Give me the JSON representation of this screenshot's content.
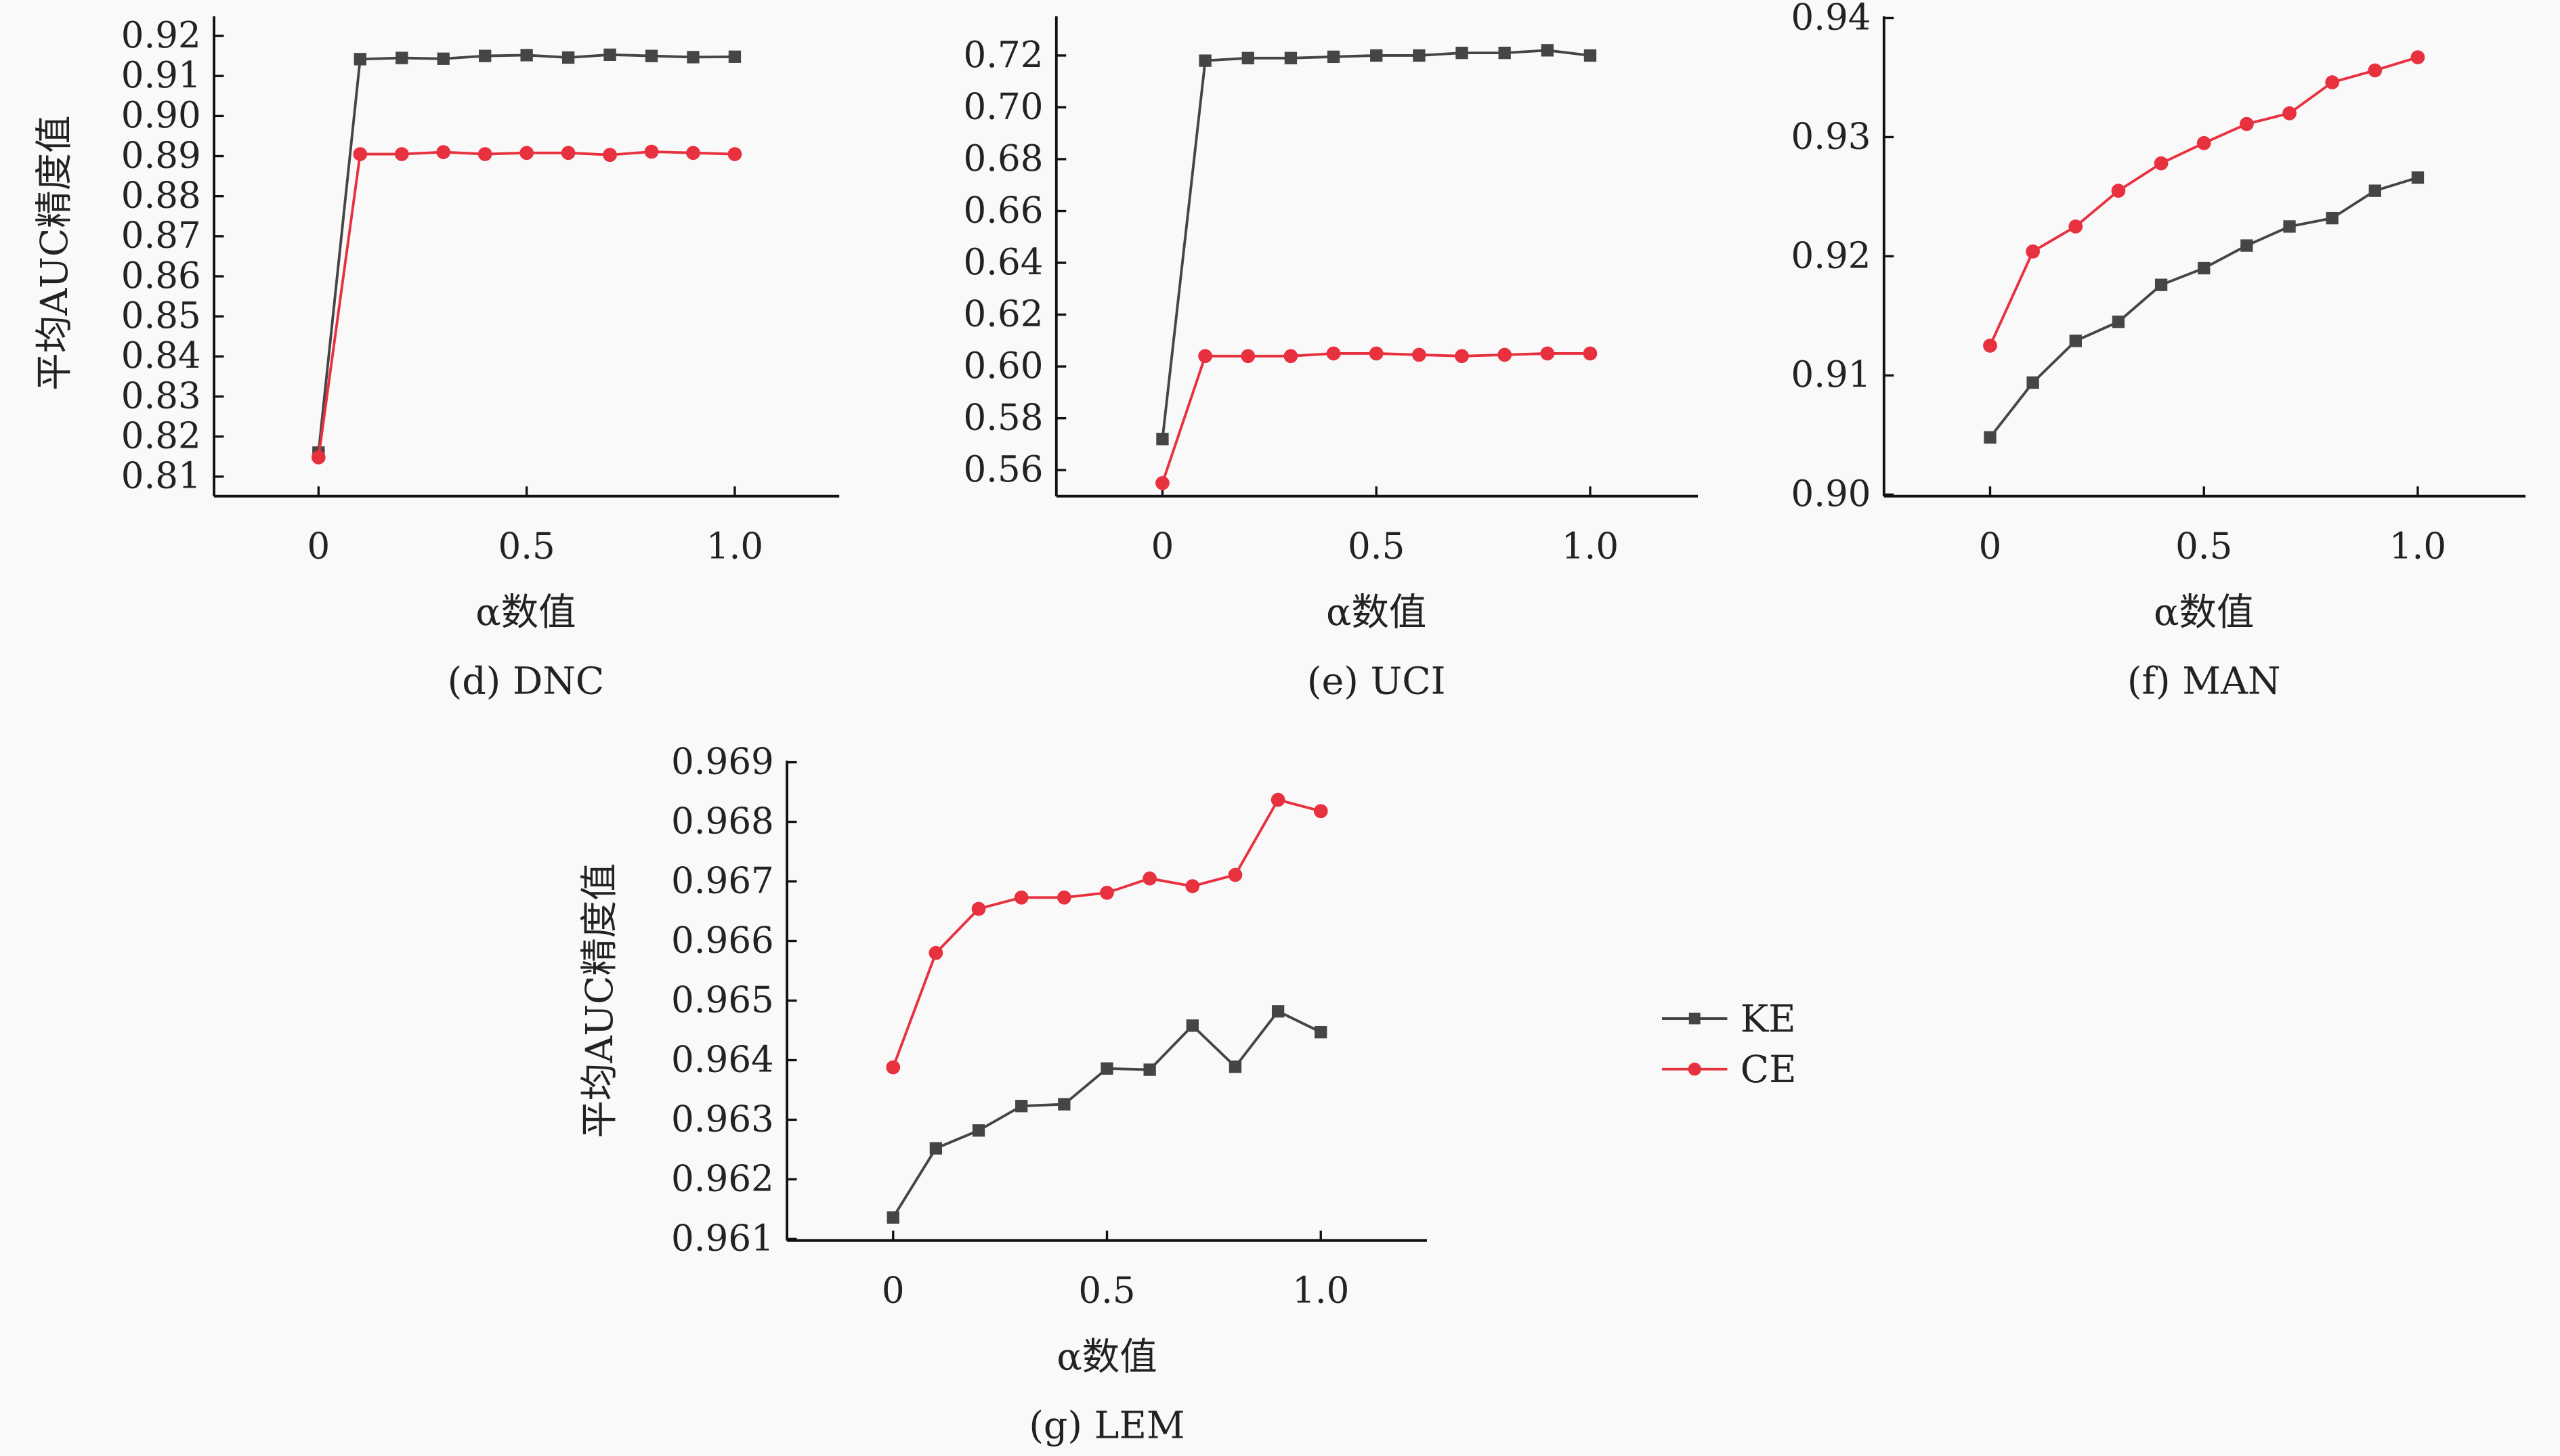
{
  "legend": {
    "position": "right of panel (g)",
    "entries": [
      "KE",
      "CE"
    ]
  },
  "colors": {
    "KE": "#454545",
    "CE": "#e8313f",
    "axis": "#111111"
  },
  "chart_data": [
    {
      "type": "line",
      "caption": "(d) DNC",
      "xlabel": "α数值",
      "ylabel": "平均AUC精度值",
      "x": [
        0,
        0.1,
        0.2,
        0.3,
        0.4,
        0.5,
        0.6,
        0.7,
        0.8,
        0.9,
        1.0
      ],
      "xticks": [
        "0",
        "0.5",
        "1.0"
      ],
      "xtick_values": [
        0,
        0.5,
        1.0
      ],
      "yticks": [
        "0.81",
        "0.82",
        "0.83",
        "0.84",
        "0.85",
        "0.86",
        "0.87",
        "0.88",
        "0.89",
        "0.90",
        "0.91",
        "0.92"
      ],
      "ytick_values": [
        0.81,
        0.82,
        0.83,
        0.84,
        0.85,
        0.86,
        0.87,
        0.88,
        0.89,
        0.9,
        0.91,
        0.92
      ],
      "ylim": [
        0.805,
        0.925
      ],
      "xlim": [
        -0.25,
        1.25
      ],
      "series": [
        {
          "name": "KE",
          "marker": "square",
          "values": [
            0.816,
            0.9142,
            0.9145,
            0.9143,
            0.915,
            0.9152,
            0.9146,
            0.9153,
            0.915,
            0.9147,
            0.9148
          ]
        },
        {
          "name": "CE",
          "marker": "circle",
          "values": [
            0.8148,
            0.8905,
            0.8905,
            0.891,
            0.8905,
            0.8908,
            0.8908,
            0.8903,
            0.8911,
            0.8908,
            0.8905
          ]
        }
      ]
    },
    {
      "type": "line",
      "caption": "(e) UCI",
      "xlabel": "α数值",
      "ylabel": "",
      "x": [
        0,
        0.1,
        0.2,
        0.3,
        0.4,
        0.5,
        0.6,
        0.7,
        0.8,
        0.9,
        1.0
      ],
      "xticks": [
        "0",
        "0.5",
        "1.0"
      ],
      "xtick_values": [
        0,
        0.5,
        1.0
      ],
      "yticks": [
        "0.56",
        "0.58",
        "0.60",
        "0.62",
        "0.64",
        "0.66",
        "0.68",
        "0.70",
        "0.72"
      ],
      "ytick_values": [
        0.56,
        0.58,
        0.6,
        0.62,
        0.64,
        0.66,
        0.68,
        0.7,
        0.72
      ],
      "ylim": [
        0.55,
        0.735
      ],
      "xlim": [
        -0.25,
        1.25
      ],
      "series": [
        {
          "name": "KE",
          "marker": "square",
          "values": [
            0.572,
            0.718,
            0.719,
            0.719,
            0.7195,
            0.72,
            0.72,
            0.721,
            0.721,
            0.722,
            0.72
          ]
        },
        {
          "name": "CE",
          "marker": "circle",
          "values": [
            0.555,
            0.604,
            0.604,
            0.604,
            0.605,
            0.605,
            0.6045,
            0.604,
            0.6045,
            0.605,
            0.605
          ]
        }
      ]
    },
    {
      "type": "line",
      "caption": "(f) MAN",
      "xlabel": "α数值",
      "ylabel": "",
      "x": [
        0,
        0.1,
        0.2,
        0.3,
        0.4,
        0.5,
        0.6,
        0.7,
        0.8,
        0.9,
        1.0
      ],
      "xticks": [
        "0",
        "0.5",
        "1.0"
      ],
      "xtick_values": [
        0,
        0.5,
        1.0
      ],
      "yticks": [
        "0.90",
        "0.91",
        "0.92",
        "0.93",
        "0.94"
      ],
      "ytick_values": [
        0.9,
        0.91,
        0.92,
        0.93,
        0.94
      ],
      "ylim": [
        0.9,
        0.94
      ],
      "xlim": [
        -0.25,
        1.25
      ],
      "series": [
        {
          "name": "KE",
          "marker": "square",
          "values": [
            0.9048,
            0.9094,
            0.9129,
            0.9145,
            0.9176,
            0.919,
            0.9209,
            0.9225,
            0.9232,
            0.9255,
            0.9266
          ]
        },
        {
          "name": "CE",
          "marker": "circle",
          "values": [
            0.9125,
            0.9204,
            0.9225,
            0.9255,
            0.9278,
            0.9295,
            0.9311,
            0.932,
            0.9346,
            0.9356,
            0.9367
          ]
        }
      ]
    },
    {
      "type": "line",
      "caption": "(g) LEM",
      "xlabel": "α数值",
      "ylabel": "平均AUC精度值",
      "x": [
        0,
        0.1,
        0.2,
        0.3,
        0.4,
        0.5,
        0.6,
        0.7,
        0.8,
        0.9,
        1.0
      ],
      "xticks": [
        "0",
        "0.5",
        "1.0"
      ],
      "xtick_values": [
        0,
        0.5,
        1.0
      ],
      "yticks": [
        "0.961",
        "0.962",
        "0.963",
        "0.964",
        "0.965",
        "0.966",
        "0.967",
        "0.968",
        "0.969"
      ],
      "ytick_values": [
        0.961,
        0.962,
        0.963,
        0.964,
        0.965,
        0.966,
        0.967,
        0.968,
        0.969
      ],
      "ylim": [
        0.961,
        0.969
      ],
      "xlim": [
        -0.25,
        1.25
      ],
      "series": [
        {
          "name": "KE",
          "marker": "square",
          "values": [
            0.96136,
            0.96252,
            0.96282,
            0.96323,
            0.96326,
            0.96386,
            0.96384,
            0.96458,
            0.96389,
            0.96482,
            0.96447
          ]
        },
        {
          "name": "CE",
          "marker": "circle",
          "values": [
            0.96388,
            0.9658,
            0.96654,
            0.96673,
            0.96673,
            0.96681,
            0.96705,
            0.96692,
            0.96711,
            0.96837,
            0.96818
          ]
        }
      ]
    }
  ]
}
